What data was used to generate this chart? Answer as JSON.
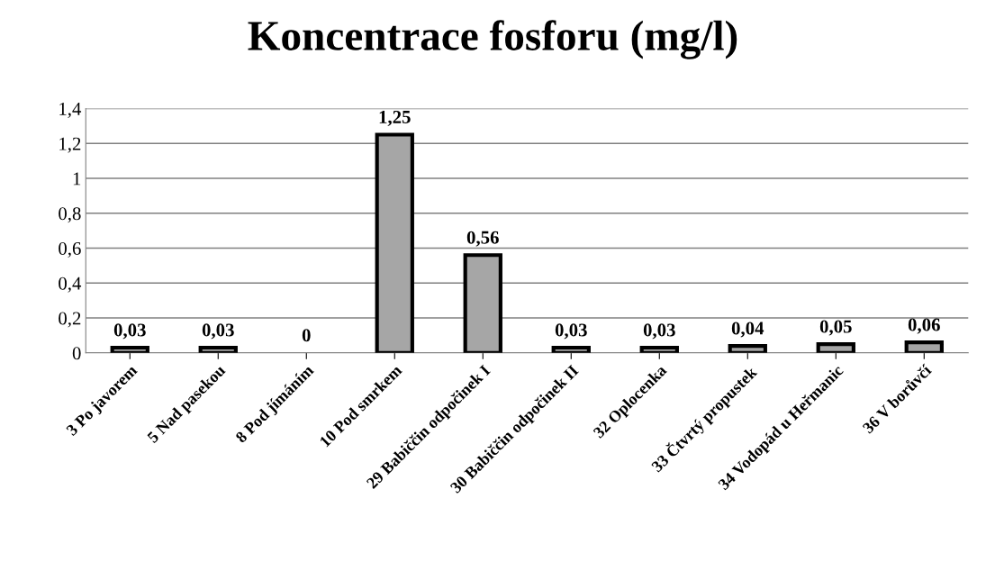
{
  "chart_data": {
    "type": "bar",
    "title": "Koncentrace fosforu (mg/l)",
    "categories": [
      "3 Po javorem",
      "5 Nad pasekou",
      "8 Pod jímáním",
      "10 Pod smrkem",
      "29 Babiččin odpočinek I",
      "30 Babiččin odpočinek II",
      "32 Oplocenka",
      "33 Čtvrtý propustek",
      "34 Vodopád u Heřmanic",
      "36 V borůvčí"
    ],
    "values": [
      0.03,
      0.03,
      0,
      1.25,
      0.56,
      0.03,
      0.03,
      0.04,
      0.05,
      0.06
    ],
    "value_labels": [
      "0,03",
      "0,03",
      "0",
      "1,25",
      "0,56",
      "0,03",
      "0,03",
      "0,04",
      "0,05",
      "0,06"
    ],
    "color": "#a6a6a6",
    "ylim": [
      0,
      1.4
    ],
    "yticks": [
      0,
      {
        "value": 0.2,
        "label": "0,2"
      },
      {
        "value": 0.4,
        "label": "0,4"
      },
      {
        "value": 0.6,
        "label": "0,6"
      },
      {
        "value": 0.8,
        "label": "0,8"
      },
      1,
      {
        "value": 1.2,
        "label": "1,2"
      },
      {
        "value": 1.4,
        "label": "1,4"
      }
    ],
    "grid": "y"
  }
}
